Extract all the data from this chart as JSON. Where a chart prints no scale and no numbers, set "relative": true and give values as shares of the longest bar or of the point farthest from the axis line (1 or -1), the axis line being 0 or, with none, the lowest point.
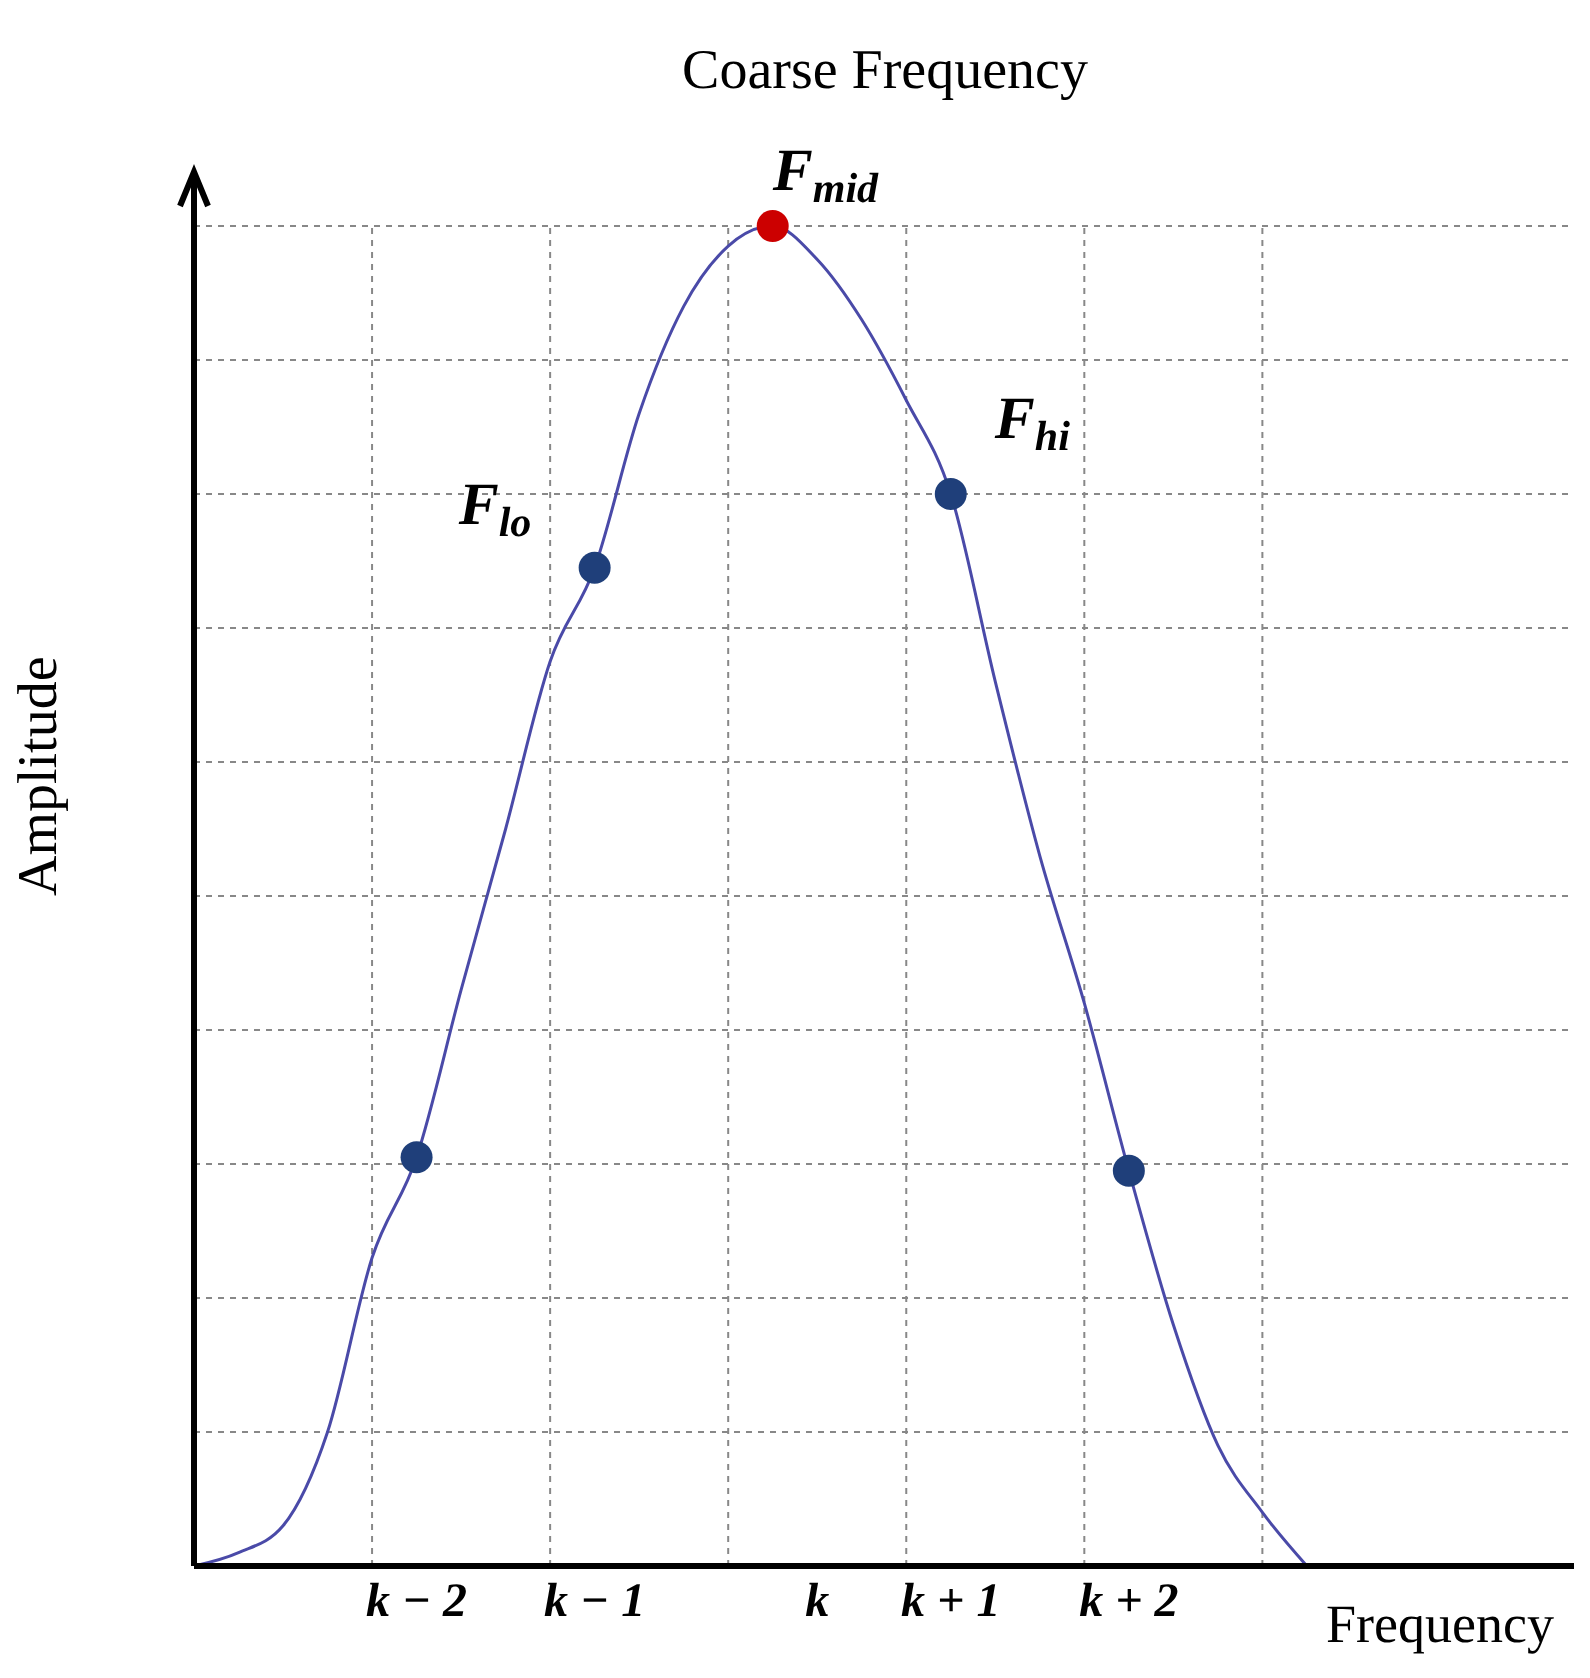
{
  "chart_data": {
    "type": "line",
    "title": "Coarse Frequency",
    "xlabel": "Frequency",
    "ylabel": "Amplitude",
    "relative": true,
    "categories": [
      null,
      null,
      null,
      null,
      null,
      "k − 2",
      null,
      null,
      null,
      "k − 1",
      null,
      null,
      null,
      null,
      "k",
      null,
      null,
      "k + 1",
      null,
      null,
      null,
      "k + 2",
      null,
      null,
      null,
      null,
      null,
      null,
      null,
      null,
      null,
      null
    ],
    "grid": true,
    "marker": "none",
    "line_style": "solid",
    "series": [
      {
        "color": "#4a4aa8",
        "values": [
          0,
          0.01,
          0.03,
          0.1,
          0.23,
          0.305,
          0.43,
          0.55,
          0.675,
          0.745,
          0.86,
          0.94,
          0.985,
          1,
          0.975,
          0.93,
          0.87,
          0.8,
          0.66,
          0.53,
          0.42,
          0.295,
          0.18,
          0.09,
          0.04,
          0,
          null,
          null,
          null,
          null,
          null,
          null
        ]
      },
      {
        "type": "scatter",
        "marker": "circle",
        "values": [
          null,
          null,
          null,
          null,
          null,
          0.305,
          null,
          null,
          null,
          0.745,
          null,
          null,
          null,
          1,
          null,
          null,
          null,
          0.8,
          null,
          null,
          null,
          0.295,
          null,
          null,
          null,
          null,
          null,
          null,
          null,
          null,
          null,
          null
        ],
        "colors": [
          null,
          null,
          null,
          null,
          null,
          "#1f3f7a",
          null,
          null,
          null,
          "#1f3f7a",
          null,
          null,
          null,
          "#cc0000",
          null,
          null,
          null,
          "#1f3f7a",
          null,
          null,
          null,
          "#1f3f7a",
          null,
          null,
          null,
          null,
          null,
          null,
          null,
          null,
          null,
          null
        ]
      }
    ],
    "annotations": [
      "F$_{lo}$",
      "F$_{mid}$",
      "F$_{hi}$"
    ]
  }
}
